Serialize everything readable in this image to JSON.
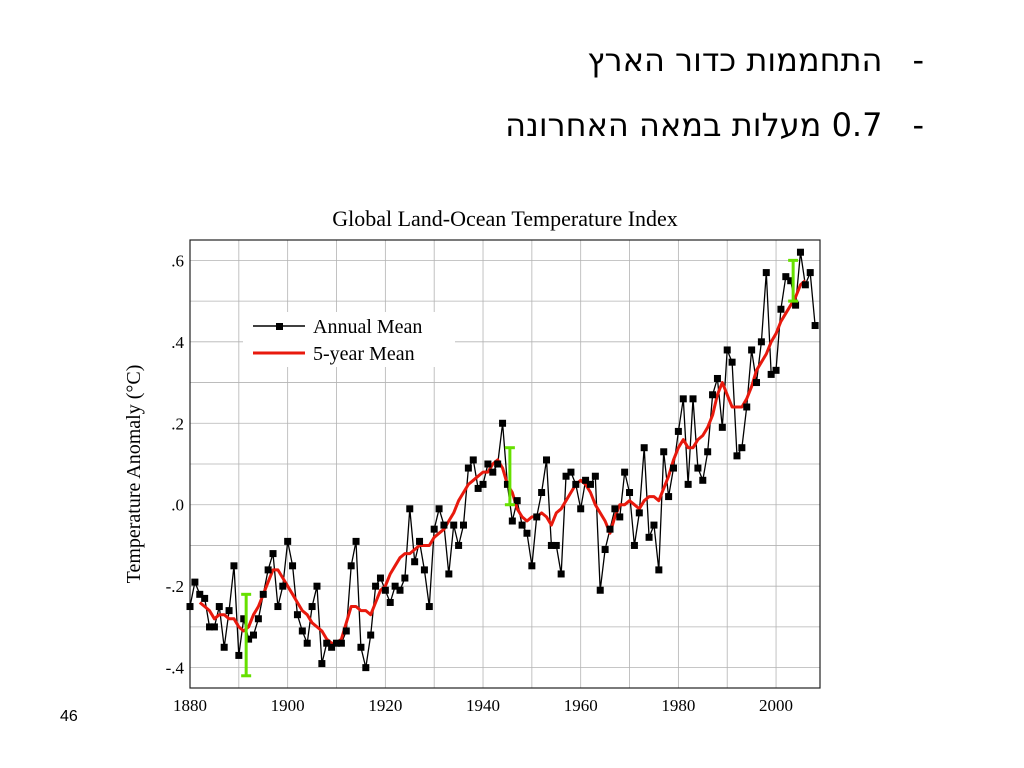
{
  "slide": {
    "bullets": [
      {
        "dash": "-",
        "text": "התחממות כדור הארץ"
      },
      {
        "dash": "-",
        "text": "0.7 מעלות במאה האחרונה"
      }
    ],
    "page_number": "46"
  },
  "chart_data": {
    "type": "line",
    "title": "Global Land-Ocean Temperature Index",
    "xlabel": "",
    "ylabel": "Temperature Anomaly (°C)",
    "xlim": [
      1880,
      2009
    ],
    "ylim": [
      -0.45,
      0.65
    ],
    "x_ticks": [
      1880,
      1900,
      1920,
      1940,
      1960,
      1980,
      2000
    ],
    "x_tick_labels": [
      "1880",
      "1900",
      "1920",
      "1940",
      "1960",
      "1980",
      "2000"
    ],
    "y_ticks": [
      -0.4,
      -0.2,
      0.0,
      0.2,
      0.4,
      0.6
    ],
    "y_tick_labels": [
      "-.4",
      "-.2",
      ".0",
      ".2",
      ".4",
      ".6"
    ],
    "grid": true,
    "legend_position": "top-left",
    "series": [
      {
        "name": "Annual Mean",
        "color": "#000000",
        "marker": "square",
        "x": [
          1880,
          1881,
          1882,
          1883,
          1884,
          1885,
          1886,
          1887,
          1888,
          1889,
          1890,
          1891,
          1892,
          1893,
          1894,
          1895,
          1896,
          1897,
          1898,
          1899,
          1900,
          1901,
          1902,
          1903,
          1904,
          1905,
          1906,
          1907,
          1908,
          1909,
          1910,
          1911,
          1912,
          1913,
          1914,
          1915,
          1916,
          1917,
          1918,
          1919,
          1920,
          1921,
          1922,
          1923,
          1924,
          1925,
          1926,
          1927,
          1928,
          1929,
          1930,
          1931,
          1932,
          1933,
          1934,
          1935,
          1936,
          1937,
          1938,
          1939,
          1940,
          1941,
          1942,
          1943,
          1944,
          1945,
          1946,
          1947,
          1948,
          1949,
          1950,
          1951,
          1952,
          1953,
          1954,
          1955,
          1956,
          1957,
          1958,
          1959,
          1960,
          1961,
          1962,
          1963,
          1964,
          1965,
          1966,
          1967,
          1968,
          1969,
          1970,
          1971,
          1972,
          1973,
          1974,
          1975,
          1976,
          1977,
          1978,
          1979,
          1980,
          1981,
          1982,
          1983,
          1984,
          1985,
          1986,
          1987,
          1988,
          1989,
          1990,
          1991,
          1992,
          1993,
          1994,
          1995,
          1996,
          1997,
          1998,
          1999,
          2000,
          2001,
          2002,
          2003,
          2004,
          2005,
          2006,
          2007,
          2008
        ],
        "values": [
          -0.25,
          -0.19,
          -0.22,
          -0.23,
          -0.3,
          -0.3,
          -0.25,
          -0.35,
          -0.26,
          -0.15,
          -0.37,
          -0.28,
          -0.33,
          -0.32,
          -0.28,
          -0.22,
          -0.16,
          -0.12,
          -0.25,
          -0.2,
          -0.09,
          -0.15,
          -0.27,
          -0.31,
          -0.34,
          -0.25,
          -0.2,
          -0.39,
          -0.34,
          -0.35,
          -0.34,
          -0.34,
          -0.31,
          -0.15,
          -0.09,
          -0.35,
          -0.4,
          -0.32,
          -0.2,
          -0.18,
          -0.21,
          -0.24,
          -0.2,
          -0.21,
          -0.18,
          -0.01,
          -0.14,
          -0.09,
          -0.16,
          -0.25,
          -0.06,
          -0.01,
          -0.05,
          -0.17,
          -0.05,
          -0.1,
          -0.05,
          0.09,
          0.11,
          0.04,
          0.05,
          0.1,
          0.08,
          0.1,
          0.2,
          0.05,
          -0.04,
          0.01,
          -0.05,
          -0.07,
          -0.15,
          -0.03,
          0.03,
          0.11,
          -0.1,
          -0.1,
          -0.17,
          0.07,
          0.08,
          0.05,
          -0.01,
          0.06,
          0.05,
          0.07,
          -0.21,
          -0.11,
          -0.06,
          -0.01,
          -0.03,
          0.08,
          0.03,
          -0.1,
          -0.02,
          0.14,
          -0.08,
          -0.05,
          -0.16,
          0.13,
          0.02,
          0.09,
          0.18,
          0.26,
          0.05,
          0.26,
          0.09,
          0.06,
          0.13,
          0.27,
          0.31,
          0.19,
          0.38,
          0.35,
          0.12,
          0.14,
          0.24,
          0.38,
          0.3,
          0.4,
          0.57,
          0.32,
          0.33,
          0.48,
          0.56,
          0.55,
          0.49,
          0.62,
          0.54,
          0.57,
          0.44
        ]
      },
      {
        "name": "5-year Mean",
        "color": "#e8190d",
        "marker": "none",
        "x": [
          1882,
          1883,
          1884,
          1885,
          1886,
          1887,
          1888,
          1889,
          1890,
          1891,
          1892,
          1893,
          1894,
          1895,
          1896,
          1897,
          1898,
          1899,
          1900,
          1901,
          1902,
          1903,
          1904,
          1905,
          1906,
          1907,
          1908,
          1909,
          1910,
          1911,
          1912,
          1913,
          1914,
          1915,
          1916,
          1917,
          1918,
          1919,
          1920,
          1921,
          1922,
          1923,
          1924,
          1925,
          1926,
          1927,
          1928,
          1929,
          1930,
          1931,
          1932,
          1933,
          1934,
          1935,
          1936,
          1937,
          1938,
          1939,
          1940,
          1941,
          1942,
          1943,
          1944,
          1945,
          1946,
          1947,
          1948,
          1949,
          1950,
          1951,
          1952,
          1953,
          1954,
          1955,
          1956,
          1957,
          1958,
          1959,
          1960,
          1961,
          1962,
          1963,
          1964,
          1965,
          1966,
          1967,
          1968,
          1969,
          1970,
          1971,
          1972,
          1973,
          1974,
          1975,
          1976,
          1977,
          1978,
          1979,
          1980,
          1981,
          1982,
          1983,
          1984,
          1985,
          1986,
          1987,
          1988,
          1989,
          1990,
          1991,
          1992,
          1993,
          1994,
          1995,
          1996,
          1997,
          1998,
          1999,
          2000,
          2001,
          2002,
          2003,
          2004,
          2005,
          2006
        ],
        "values": [
          -0.24,
          -0.25,
          -0.26,
          -0.28,
          -0.27,
          -0.27,
          -0.28,
          -0.28,
          -0.3,
          -0.31,
          -0.3,
          -0.27,
          -0.25,
          -0.22,
          -0.19,
          -0.16,
          -0.16,
          -0.18,
          -0.2,
          -0.22,
          -0.24,
          -0.26,
          -0.27,
          -0.29,
          -0.3,
          -0.31,
          -0.33,
          -0.34,
          -0.34,
          -0.33,
          -0.29,
          -0.25,
          -0.25,
          -0.26,
          -0.26,
          -0.27,
          -0.24,
          -0.21,
          -0.2,
          -0.17,
          -0.15,
          -0.13,
          -0.12,
          -0.12,
          -0.11,
          -0.1,
          -0.1,
          -0.1,
          -0.08,
          -0.07,
          -0.06,
          -0.04,
          -0.02,
          0.01,
          0.03,
          0.05,
          0.06,
          0.07,
          0.08,
          0.08,
          0.1,
          0.11,
          0.09,
          0.05,
          0.03,
          -0.01,
          -0.03,
          -0.04,
          -0.03,
          -0.03,
          -0.02,
          -0.03,
          -0.05,
          -0.02,
          -0.01,
          0.01,
          0.03,
          0.05,
          0.06,
          0.05,
          0.03,
          0.0,
          -0.02,
          -0.04,
          -0.07,
          -0.03,
          0.0,
          0.0,
          0.01,
          0.0,
          -0.01,
          0.01,
          0.02,
          0.02,
          0.01,
          0.04,
          0.07,
          0.11,
          0.14,
          0.16,
          0.14,
          0.14,
          0.16,
          0.17,
          0.19,
          0.22,
          0.27,
          0.3,
          0.27,
          0.24,
          0.24,
          0.24,
          0.26,
          0.29,
          0.33,
          0.35,
          0.37,
          0.4,
          0.42,
          0.45,
          0.47,
          0.49,
          0.51,
          0.54,
          0.55
        ]
      }
    ],
    "error_bars": {
      "color": "#66e000",
      "items": [
        {
          "x": 1891.5,
          "low": -0.42,
          "high": -0.22
        },
        {
          "x": 1945.5,
          "low": 0.0,
          "high": 0.14
        },
        {
          "x": 2003.5,
          "low": 0.5,
          "high": 0.6
        }
      ]
    }
  }
}
